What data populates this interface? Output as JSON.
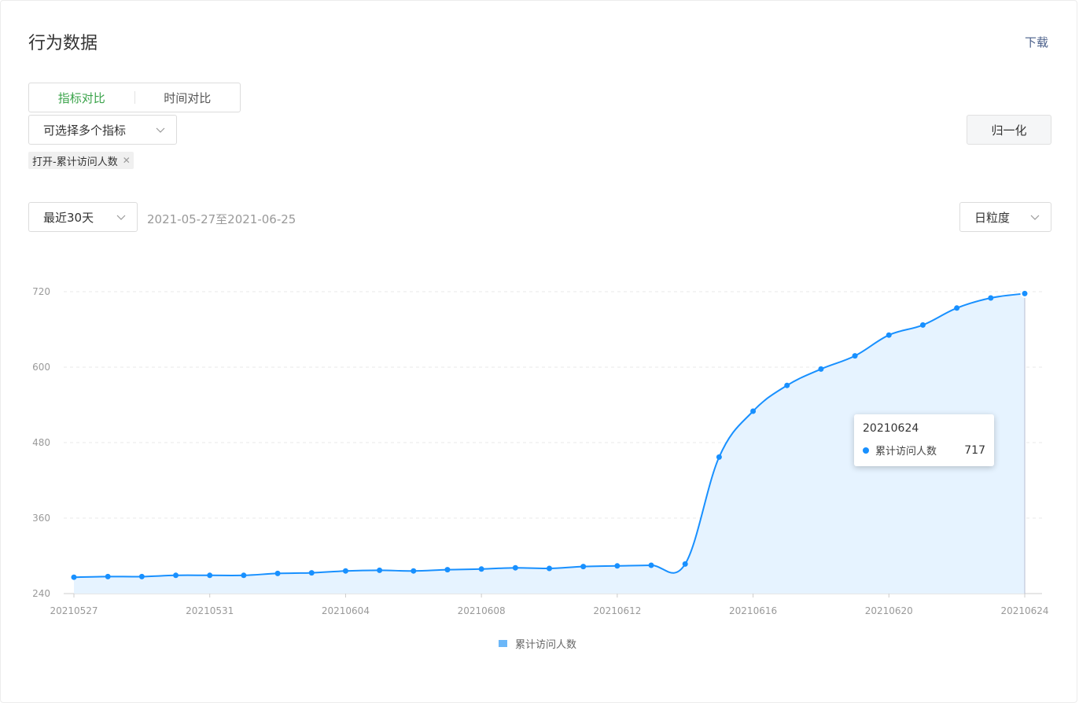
{
  "header": {
    "title": "行为数据",
    "download_label": "下载"
  },
  "compare_tabs": [
    {
      "label": "指标对比",
      "active": true
    },
    {
      "label": "时间对比",
      "active": false
    }
  ],
  "metric_select": {
    "placeholder": "可选择多个指标"
  },
  "selected_tags": [
    {
      "label": "打开-累计访问人数"
    }
  ],
  "normalize_label": "归一化",
  "range_select": {
    "value": "最近30天"
  },
  "date_range_text": "2021-05-27至2021-06-25",
  "granularity_select": {
    "value": "日粒度"
  },
  "colors": {
    "accent": "#1890ff",
    "area": "#e6f3ff",
    "active_tab": "#3aa34a"
  },
  "tooltip": {
    "date": "20210624",
    "series": "累计访问人数",
    "value": "717"
  },
  "chart_data": {
    "type": "area",
    "x": [
      "20210527",
      "20210528",
      "20210529",
      "20210530",
      "20210531",
      "20210601",
      "20210602",
      "20210603",
      "20210604",
      "20210605",
      "20210606",
      "20210607",
      "20210608",
      "20210609",
      "20210610",
      "20210611",
      "20210612",
      "20210613",
      "20210614",
      "20210615",
      "20210616",
      "20210617",
      "20210618",
      "20210619",
      "20210620",
      "20210621",
      "20210622",
      "20210623",
      "20210624"
    ],
    "x_tick_labels": [
      "20210527",
      "20210531",
      "20210604",
      "20210608",
      "20210612",
      "20210616",
      "20210620",
      "20210624"
    ],
    "series": [
      {
        "name": "累计访问人数",
        "values": [
          266,
          267,
          267,
          269,
          269,
          269,
          272,
          273,
          276,
          277,
          276,
          278,
          279,
          281,
          280,
          283,
          284,
          285,
          287,
          457,
          530,
          571,
          597,
          618,
          651,
          667,
          694,
          710,
          717
        ]
      }
    ],
    "ylim": [
      240,
      720
    ],
    "y_ticks": [
      240,
      360,
      480,
      600,
      720
    ],
    "grid": true,
    "legend_position": "bottom-center"
  }
}
